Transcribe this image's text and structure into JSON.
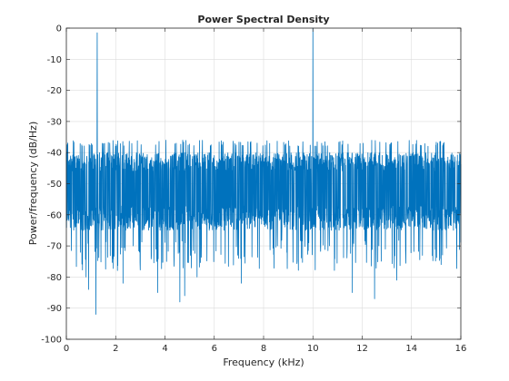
{
  "chart_data": {
    "type": "line",
    "title": "Power Spectral Density",
    "xlabel": "Frequency (kHz)",
    "ylabel": "Power/frequency (dB/Hz)",
    "xlim": [
      0,
      16
    ],
    "ylim": [
      -100,
      0
    ],
    "xticks": [
      0,
      2,
      4,
      6,
      8,
      10,
      12,
      14,
      16
    ],
    "yticks": [
      0,
      -10,
      -20,
      -30,
      -40,
      -50,
      -60,
      -70,
      -80,
      -90,
      -100
    ],
    "grid": true,
    "series": [
      {
        "color": "#0072BD",
        "noise_floor": {
          "typical_range_db": [
            -65,
            -40
          ],
          "upper_envelope_db": -36,
          "deep_dips": [
            {
              "x": 0.8,
              "y": -80
            },
            {
              "x": 0.9,
              "y": -84
            },
            {
              "x": 1.2,
              "y": -92
            },
            {
              "x": 2.3,
              "y": -82
            },
            {
              "x": 3.7,
              "y": -85
            },
            {
              "x": 4.6,
              "y": -88
            },
            {
              "x": 4.8,
              "y": -86
            },
            {
              "x": 5.3,
              "y": -80
            },
            {
              "x": 7.1,
              "y": -82
            },
            {
              "x": 11.6,
              "y": -85
            },
            {
              "x": 12.5,
              "y": -87
            },
            {
              "x": 13.4,
              "y": -81
            },
            {
              "x": 15.2,
              "y": -76
            }
          ]
        },
        "peaks": [
          {
            "x": 1.25,
            "y": -1.5
          },
          {
            "x": 10.0,
            "y": 0
          }
        ]
      }
    ]
  }
}
